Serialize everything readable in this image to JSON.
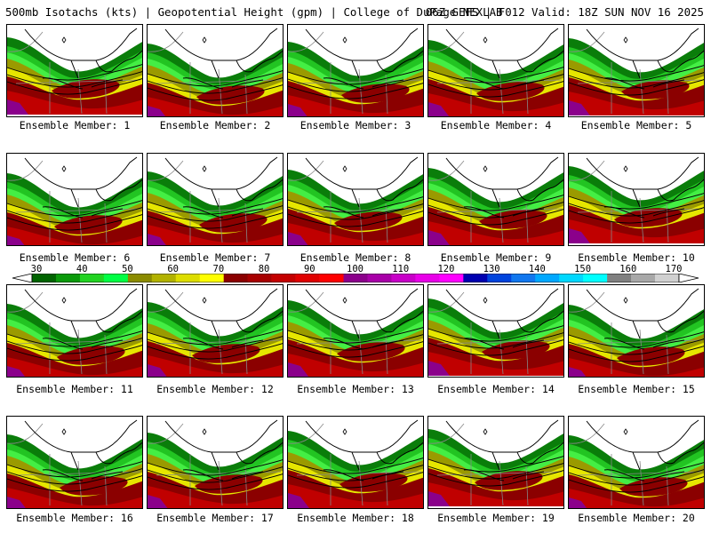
{
  "title": {
    "left": "500mb Isotachs (kts) | Geopotential Height (gpm) | College of DuPage NEXLAB",
    "right": "06Z GEFS | F012 Valid: 18Z SUN NOV 16 2025"
  },
  "members": [
    {
      "label": "Ensemble Member: 1"
    },
    {
      "label": "Ensemble Member: 2"
    },
    {
      "label": "Ensemble Member: 3"
    },
    {
      "label": "Ensemble Member: 4"
    },
    {
      "label": "Ensemble Member: 5"
    },
    {
      "label": "Ensemble Member: 6"
    },
    {
      "label": "Ensemble Member: 7"
    },
    {
      "label": "Ensemble Member: 8"
    },
    {
      "label": "Ensemble Member: 9"
    },
    {
      "label": "Ensemble Member: 10"
    },
    {
      "label": "Ensemble Member: 11"
    },
    {
      "label": "Ensemble Member: 12"
    },
    {
      "label": "Ensemble Member: 13"
    },
    {
      "label": "Ensemble Member: 14"
    },
    {
      "label": "Ensemble Member: 15"
    },
    {
      "label": "Ensemble Member: 16"
    },
    {
      "label": "Ensemble Member: 17"
    },
    {
      "label": "Ensemble Member: 18"
    },
    {
      "label": "Ensemble Member: 19"
    },
    {
      "label": "Ensemble Member: 20"
    }
  ],
  "colorbar": {
    "tick_labels": [
      "30",
      "40",
      "50",
      "60",
      "70",
      "80",
      "90",
      "100",
      "110",
      "120",
      "130",
      "140",
      "150",
      "160",
      "170"
    ],
    "colors": [
      "#006400",
      "#0a9a0a",
      "#22d322",
      "#00ff44",
      "#8b8b00",
      "#b2b200",
      "#dddd00",
      "#ffff00",
      "#8b0000",
      "#a80000",
      "#c40000",
      "#e00000",
      "#ff0000",
      "#8b008b",
      "#a800a8",
      "#c800c8",
      "#e800e8",
      "#ff00ff",
      "#0000b0",
      "#0044dd",
      "#1177ee",
      "#00a8ff",
      "#00d8ff",
      "#00ffff",
      "#808080",
      "#a8a8a8",
      "#d0d0d0"
    ]
  },
  "legend_colors": {
    "green_dark": "#0a7d0a",
    "green": "#22c422",
    "green_light": "#44ee44",
    "olive": "#9a9a00",
    "yellow": "#e6e600",
    "red_dark": "#8b0000",
    "red": "#c00000",
    "purple": "#8b008b"
  }
}
